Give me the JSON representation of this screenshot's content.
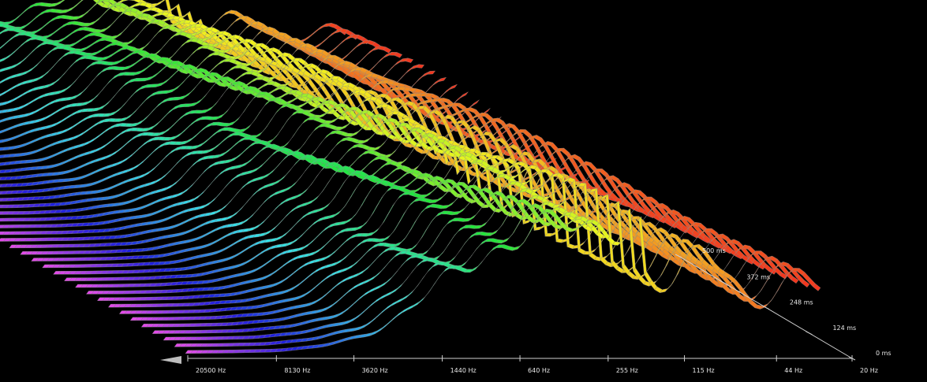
{
  "chart_data": {
    "type": "waterfall-3d",
    "background": "#000000",
    "x_ticks": [
      {
        "label": "20500 Hz",
        "freq": 20500
      },
      {
        "label": "8130 Hz",
        "freq": 8130
      },
      {
        "label": "3620 Hz",
        "freq": 3620
      },
      {
        "label": "1440 Hz",
        "freq": 1440
      },
      {
        "label": "640 Hz",
        "freq": 640
      },
      {
        "label": "255 Hz",
        "freq": 255
      },
      {
        "label": "115 Hz",
        "freq": 115
      },
      {
        "label": "44 Hz",
        "freq": 44
      },
      {
        "label": "20 Hz",
        "freq": 20
      }
    ],
    "time_ticks": [
      {
        "label": "0 ms",
        "t": 0
      },
      {
        "label": "124 ms",
        "t": 124
      },
      {
        "label": "248 ms",
        "t": 248
      },
      {
        "label": "372 ms",
        "t": 372
      },
      {
        "label": "500 ms",
        "t": 500
      }
    ],
    "color_scale": [
      "#e24ae9",
      "#1f1fe0",
      "#33e0ea",
      "#22e63a",
      "#f0f51e",
      "#f2a022",
      "#f2321e"
    ],
    "palette_axis": "frequency, high to low",
    "time_axis_max_ms": 500,
    "x_range_hz": [
      20500,
      20
    ]
  }
}
